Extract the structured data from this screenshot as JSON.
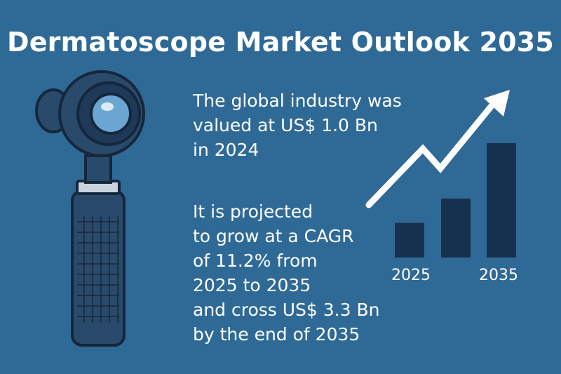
{
  "title": "Dermatoscope Market Outlook 2035",
  "valuation_lines": [
    "The global industry was",
    "valued at US$ 1.0 Bn",
    "in 2024"
  ],
  "projection_lines": [
    "It is projected",
    "to grow at a CAGR",
    "of 11.2% from",
    "2025 to 2035",
    "and cross US$ 3.3 Bn",
    "by the end of 2035"
  ],
  "chart_data": {
    "type": "bar",
    "categories": [
      "2025",
      "",
      "2035"
    ],
    "values": [
      1.0,
      1.7,
      3.3
    ],
    "tick_labels": [
      "2025",
      "2035"
    ],
    "trend": "upward arrow"
  },
  "colors": {
    "background": "#2f6a96",
    "bars": "#16314d",
    "text": "#ffffff"
  },
  "icons": {
    "device": "dermatoscope-icon",
    "trend": "trend-arrow-icon"
  }
}
